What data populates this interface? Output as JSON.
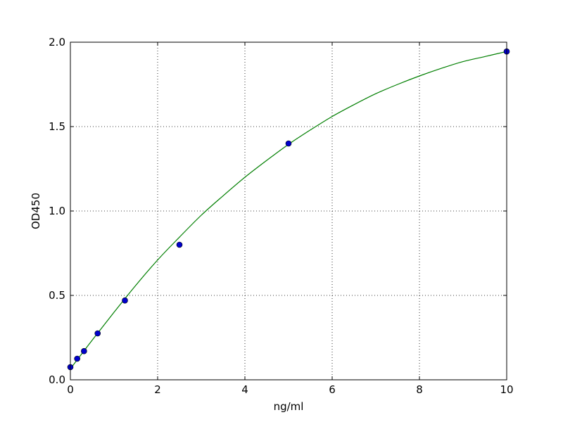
{
  "chart_data": {
    "type": "scatter",
    "title": "",
    "xlabel": "ng/ml",
    "ylabel": "OD450",
    "xlim": [
      0,
      10
    ],
    "ylim": [
      0,
      2.0
    ],
    "x_ticks": [
      0,
      2,
      4,
      6,
      8,
      10
    ],
    "x_tick_labels": [
      "0",
      "2",
      "4",
      "6",
      "8",
      "10"
    ],
    "y_ticks": [
      0,
      0.5,
      1.0,
      1.5,
      2.0
    ],
    "y_tick_labels": [
      "0.0",
      "0.5",
      "1.0",
      "1.5",
      "2.0"
    ],
    "grid": true,
    "grid_style": "dotted",
    "series": [
      {
        "kind": "points",
        "color": "#0000cc",
        "x": [
          0,
          0.156,
          0.3125,
          0.625,
          1.25,
          2.5,
          5,
          10
        ],
        "y": [
          0.075,
          0.125,
          0.17,
          0.275,
          0.47,
          0.8,
          1.4,
          1.945
        ]
      },
      {
        "kind": "fit-curve",
        "color": "#007f00",
        "x": [
          0,
          0.5,
          1,
          1.5,
          2,
          2.5,
          3,
          3.5,
          4,
          4.5,
          5,
          5.5,
          6,
          6.5,
          7,
          7.5,
          8,
          8.5,
          9,
          9.5,
          10
        ],
        "y": [
          0.065,
          0.235,
          0.4,
          0.56,
          0.71,
          0.845,
          0.975,
          1.09,
          1.2,
          1.3,
          1.395,
          1.48,
          1.56,
          1.63,
          1.695,
          1.75,
          1.8,
          1.845,
          1.885,
          1.915,
          1.945
        ]
      }
    ]
  }
}
